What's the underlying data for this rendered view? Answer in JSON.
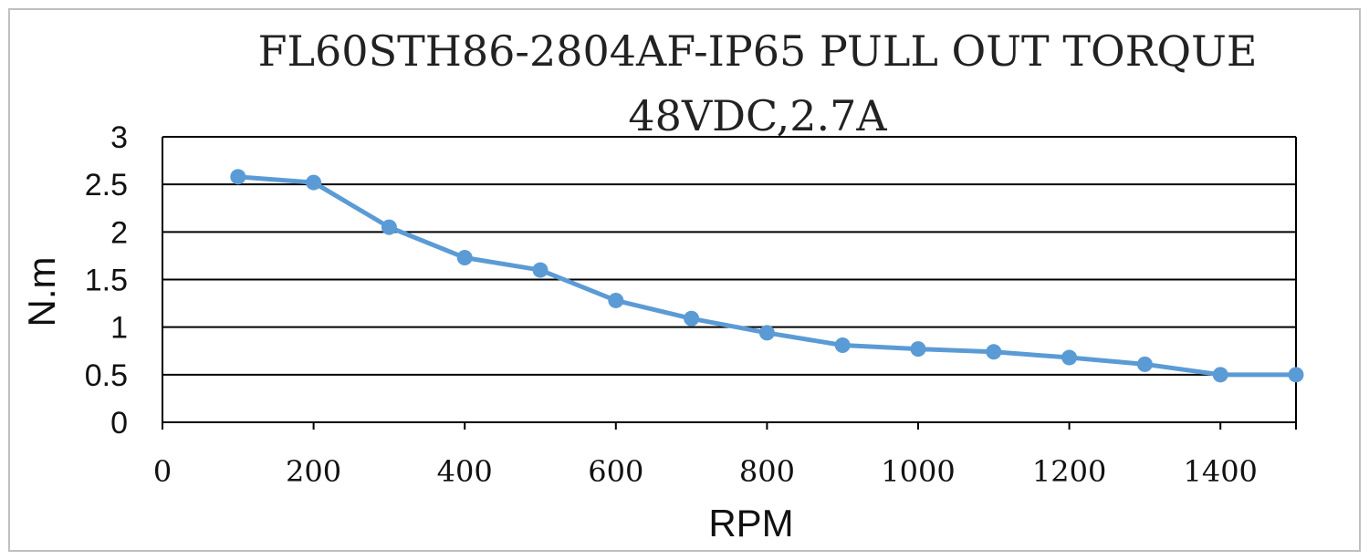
{
  "chart_data": {
    "type": "line",
    "title": "FL60STH86-2804AF-IP65 PULL OUT TORQUE",
    "subtitle": "48VDC,2.7A",
    "xlabel": "RPM",
    "ylabel": "N.m",
    "xlim": [
      0,
      1500
    ],
    "ylim": [
      0,
      3
    ],
    "x_ticks": [
      "0",
      "200",
      "400",
      "600",
      "800",
      "1000",
      "1200",
      "1400"
    ],
    "y_ticks": [
      "0",
      "0.5",
      "1",
      "1.5",
      "2",
      "2.5",
      "3"
    ],
    "grid": "horizontal",
    "legend": "none",
    "series": [
      {
        "color": "#5b9bd5",
        "x": [
          100,
          200,
          300,
          400,
          500,
          600,
          700,
          800,
          900,
          1000,
          1100,
          1200,
          1300,
          1400,
          1500
        ],
        "y": [
          2.58,
          2.52,
          2.05,
          1.73,
          1.6,
          1.28,
          1.09,
          0.94,
          0.81,
          0.77,
          0.74,
          0.68,
          0.61,
          0.5,
          0.5
        ]
      }
    ]
  }
}
